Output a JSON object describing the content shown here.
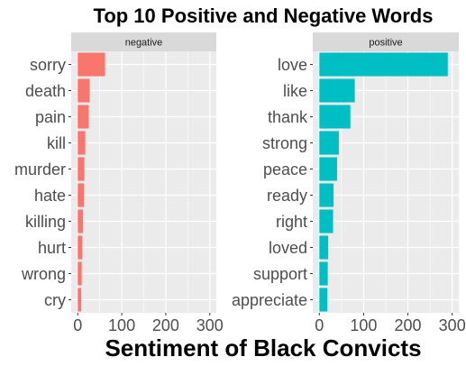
{
  "chart_data": {
    "type": "bar",
    "title": "Top 10 Positive and Negative Words",
    "xlabel": "Sentiment of Black Convicts",
    "ylabel": "",
    "xlim": [
      0,
      300
    ],
    "x_ticks": [
      0,
      100,
      200,
      300
    ],
    "grid": true,
    "orientation": "horizontal",
    "panels": [
      {
        "name": "negative",
        "color": "#F8766D",
        "categories": [
          "sorry",
          "death",
          "pain",
          "kill",
          "murder",
          "hate",
          "killing",
          "hurt",
          "wrong",
          "cry"
        ],
        "values": [
          62,
          27,
          25,
          17,
          15,
          14,
          12,
          10,
          9,
          8
        ]
      },
      {
        "name": "positive",
        "color": "#00BFC4",
        "categories": [
          "love",
          "like",
          "thank",
          "strong",
          "peace",
          "ready",
          "right",
          "loved",
          "support",
          "appreciate"
        ],
        "values": [
          290,
          80,
          70,
          44,
          40,
          32,
          31,
          20,
          19,
          18
        ]
      }
    ]
  },
  "colors": {
    "panel_bg": "#EBEBEB",
    "strip_bg": "#D9D9D9",
    "grid": "#FFFFFF"
  }
}
